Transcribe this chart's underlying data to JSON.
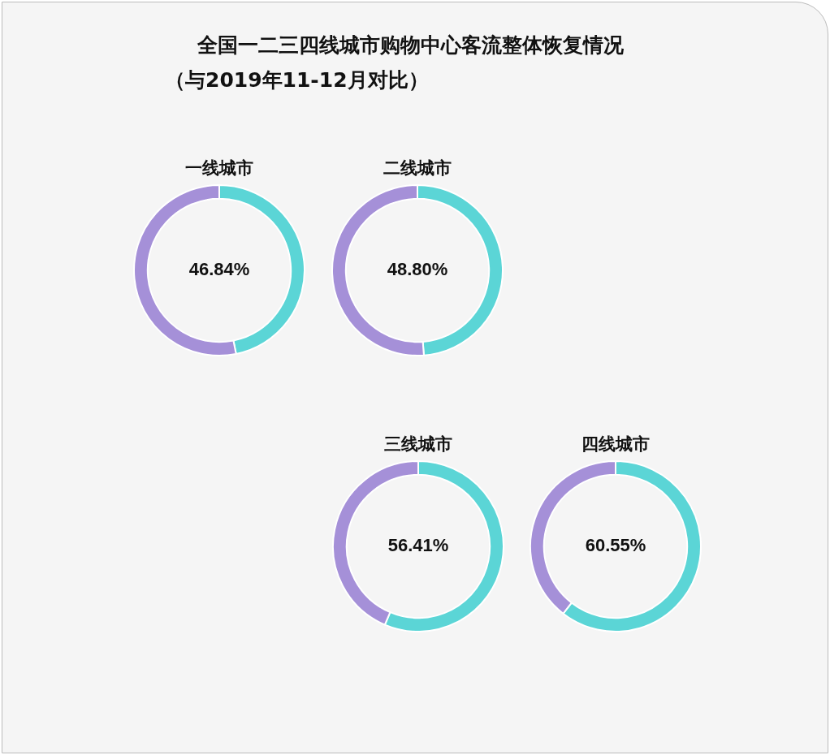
{
  "chart_data": [
    {
      "type": "other",
      "title": "全国一二三四线城市购物中心客流整体恢复情况",
      "subtitle": "（与2019年11-12月对比）"
    },
    {
      "type": "donut",
      "title": "一线城市",
      "categories": [
        null,
        null
      ],
      "values": [
        46.84,
        53.16
      ],
      "colors": [
        "#5bd5d6",
        "#a590d8"
      ],
      "value_labels": [
        "46.84%",
        null
      ]
    },
    {
      "type": "donut",
      "title": "二线城市",
      "categories": [
        null,
        null
      ],
      "values": [
        48.8,
        51.2
      ],
      "colors": [
        "#5bd5d6",
        "#a590d8"
      ],
      "value_labels": [
        "48.80%",
        null
      ]
    },
    {
      "type": "donut",
      "title": "三线城市",
      "categories": [
        null,
        null
      ],
      "values": [
        56.41,
        43.59
      ],
      "colors": [
        "#5bd5d6",
        "#a590d8"
      ],
      "value_labels": [
        "56.41%",
        null
      ]
    },
    {
      "type": "donut",
      "title": "四线城市",
      "categories": [
        null,
        null
      ],
      "values": [
        60.55,
        39.45
      ],
      "colors": [
        "#5bd5d6",
        "#a590d8"
      ],
      "value_labels": [
        "60.55%",
        null
      ]
    }
  ]
}
